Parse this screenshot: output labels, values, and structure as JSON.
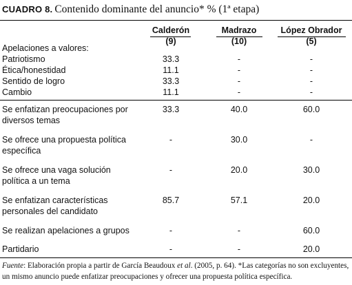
{
  "title": {
    "label": "CUADRO 8.",
    "text": "Contenido dominante del anuncio* % (1ª etapa)"
  },
  "columns": [
    {
      "name": "Calderón",
      "n": "(9)"
    },
    {
      "name": "Madrazo",
      "n": "(10)"
    },
    {
      "name": "López Obrador",
      "n": "(5)"
    }
  ],
  "section_label": "Apelaciones a valores:",
  "rows": [
    {
      "label": [
        "Patriotismo"
      ],
      "values": [
        "33.3",
        "-",
        "-"
      ]
    },
    {
      "label": [
        "Ética/honestidad"
      ],
      "values": [
        "11.1",
        "-",
        "-"
      ]
    },
    {
      "label": [
        "Sentido de logro"
      ],
      "values": [
        "33.3",
        "-",
        "-"
      ]
    },
    {
      "label": [
        "Cambio"
      ],
      "values": [
        "11.1",
        "-",
        "-"
      ]
    },
    {
      "label": [
        "Se enfatizan preocupaciones por",
        "diversos temas"
      ],
      "values": [
        "33.3",
        "40.0",
        "60.0"
      ]
    },
    {
      "label": [
        "Se ofrece una propuesta política",
        "específica"
      ],
      "values": [
        "-",
        "30.0",
        "-"
      ]
    },
    {
      "label": [
        "Se ofrece una vaga solución",
        "política a un tema"
      ],
      "values": [
        "-",
        "20.0",
        "30.0"
      ]
    },
    {
      "label": [
        "Se enfatizan características",
        "personales del candidato"
      ],
      "values": [
        "85.7",
        "57.1",
        "20.0"
      ]
    },
    {
      "label": [
        "Se realizan apelaciones a grupos"
      ],
      "values": [
        "-",
        "-",
        "60.0"
      ]
    },
    {
      "label": [
        "Partidario"
      ],
      "values": [
        "-",
        "-",
        "20.0"
      ]
    }
  ],
  "footnote": {
    "source_label": "Fuente",
    "line1_a": ": Elaboración propia a partir de García Beaudoux ",
    "et_al": "et al",
    "line1_b": ". (2005, p. 64). *Las categorías no son excluyentes,",
    "line2": "un mismo anuncio puede enfatizar preocupaciones y ofrecer una propuesta política específica."
  }
}
